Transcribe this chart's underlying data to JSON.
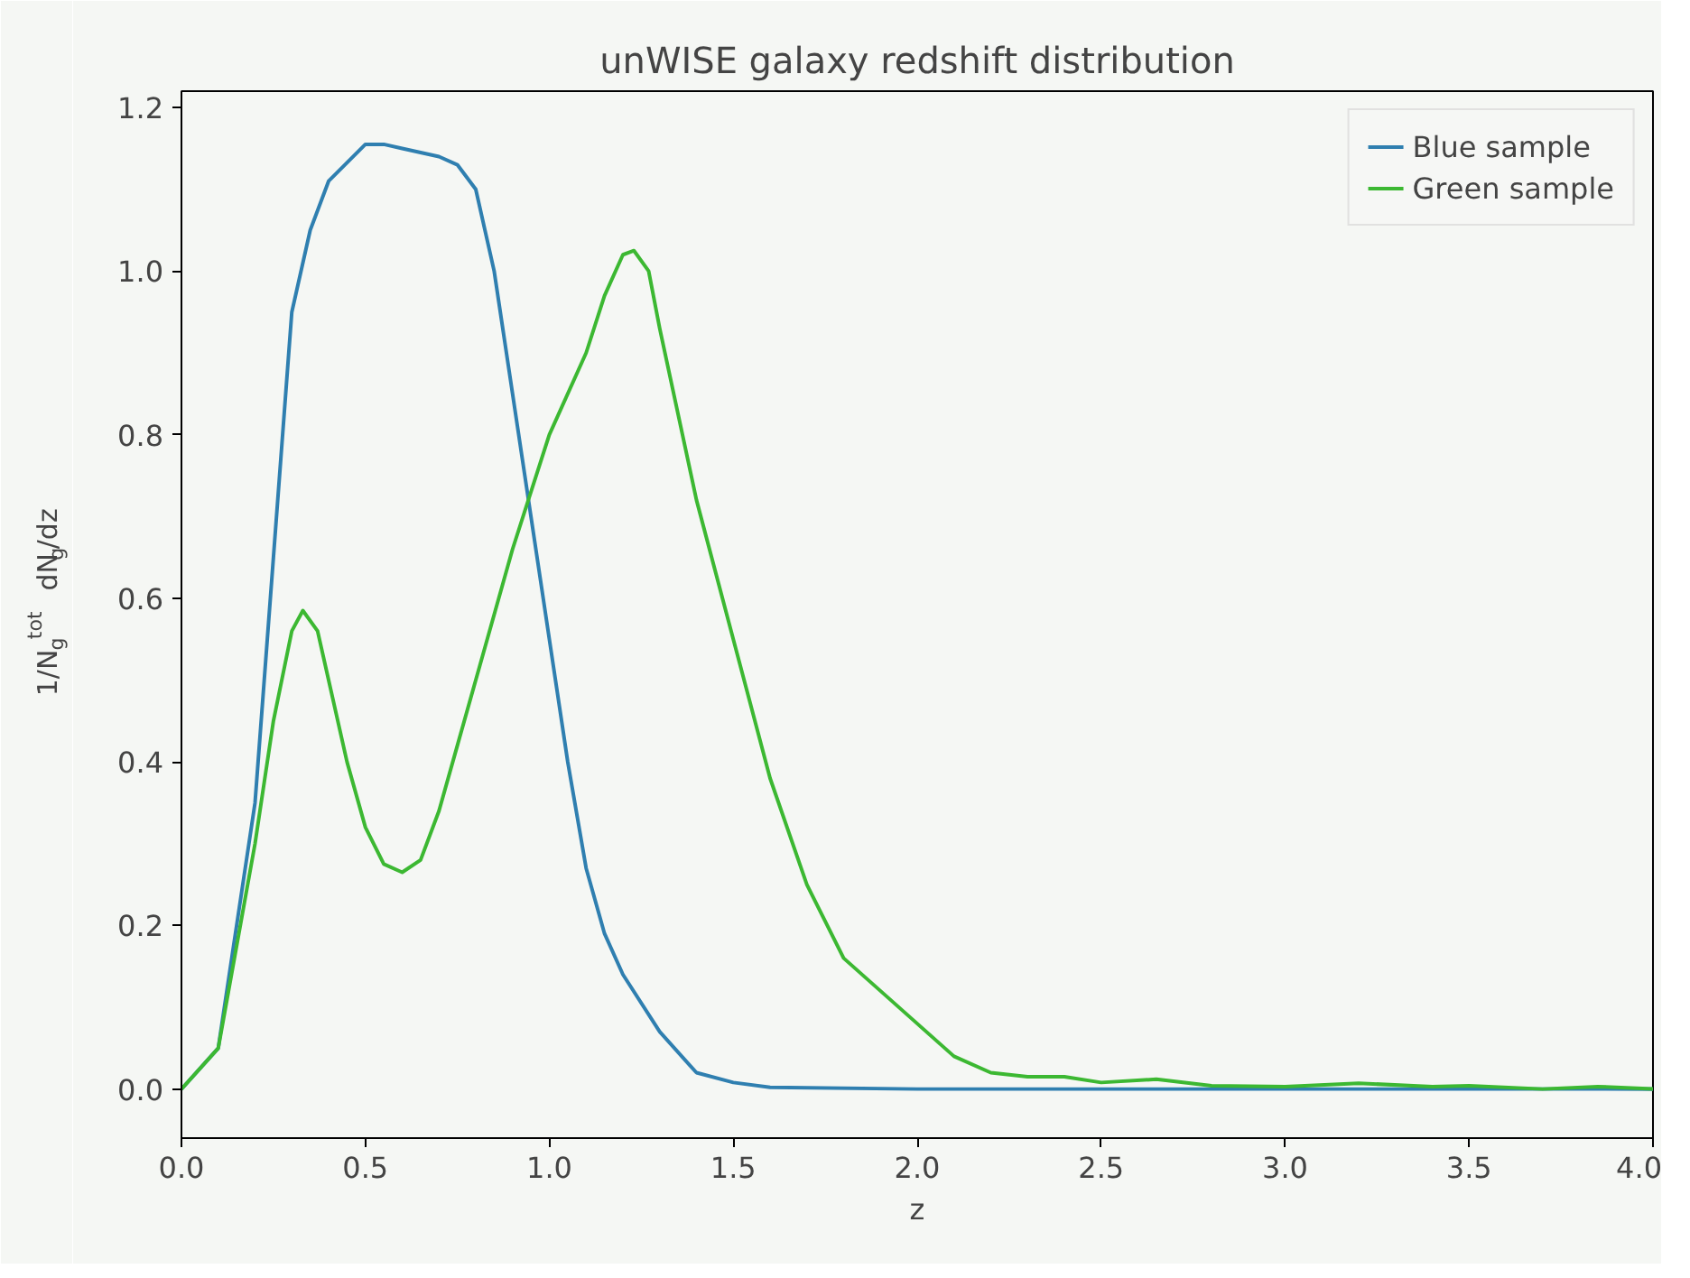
{
  "chart_data": {
    "type": "line",
    "title": "unWISE galaxy redshift distribution",
    "xlabel": "z",
    "ylabel": "1/N$_{g}$$^{tot}$ dN$_{g}$/dz",
    "xlim": [
      0,
      4
    ],
    "ylim": [
      -0.06,
      1.22
    ],
    "xticks": [
      {
        "value": 0,
        "label": "0.0"
      },
      {
        "value": 0.5,
        "label": "0.5"
      },
      {
        "value": 1,
        "label": "1.0"
      },
      {
        "value": 1.5,
        "label": "1.5"
      },
      {
        "value": 2,
        "label": "2.0"
      },
      {
        "value": 2.5,
        "label": "2.5"
      },
      {
        "value": 3,
        "label": "3.0"
      },
      {
        "value": 3.5,
        "label": "3.5"
      },
      {
        "value": 4,
        "label": "4.0"
      }
    ],
    "yticks": [
      {
        "value": 0,
        "label": "0.0"
      },
      {
        "value": 0.2,
        "label": "0.2"
      },
      {
        "value": 0.4,
        "label": "0.4"
      },
      {
        "value": 0.6,
        "label": "0.6"
      },
      {
        "value": 0.8,
        "label": "0.8"
      },
      {
        "value": 1,
        "label": "1.0"
      },
      {
        "value": 1.2,
        "label": "1.2"
      }
    ],
    "grid": false,
    "legend": "top right",
    "marker": "none",
    "line_style": "solid",
    "series": [
      {
        "name": "Blue sample",
        "color": "#2f7fb0",
        "x": [
          0,
          0.1,
          0.2,
          0.25,
          0.3,
          0.35,
          0.4,
          0.5,
          0.55,
          0.6,
          0.7,
          0.75,
          0.8,
          0.85,
          0.9,
          0.95,
          1.0,
          1.05,
          1.1,
          1.15,
          1.2,
          1.3,
          1.4,
          1.5,
          1.6,
          2.0,
          4.0
        ],
        "values": [
          0,
          0.05,
          0.35,
          0.65,
          0.95,
          1.05,
          1.11,
          1.155,
          1.155,
          1.15,
          1.14,
          1.13,
          1.1,
          1.0,
          0.85,
          0.7,
          0.55,
          0.4,
          0.27,
          0.19,
          0.14,
          0.07,
          0.02,
          0.008,
          0.002,
          0,
          0
        ]
      },
      {
        "name": "Green sample",
        "color": "#3cb832",
        "x": [
          0,
          0.1,
          0.2,
          0.25,
          0.3,
          0.33,
          0.37,
          0.4,
          0.45,
          0.5,
          0.55,
          0.6,
          0.65,
          0.7,
          0.8,
          0.9,
          1.0,
          1.1,
          1.15,
          1.2,
          1.23,
          1.27,
          1.3,
          1.4,
          1.5,
          1.6,
          1.7,
          1.8,
          1.9,
          2.0,
          2.1,
          2.2,
          2.3,
          2.4,
          2.5,
          2.65,
          2.8,
          3.0,
          3.2,
          3.4,
          3.5,
          3.7,
          3.85,
          4.0
        ],
        "values": [
          0,
          0.05,
          0.3,
          0.45,
          0.56,
          0.585,
          0.56,
          0.5,
          0.4,
          0.32,
          0.275,
          0.265,
          0.28,
          0.34,
          0.5,
          0.66,
          0.8,
          0.9,
          0.97,
          1.02,
          1.025,
          1.0,
          0.93,
          0.72,
          0.55,
          0.38,
          0.25,
          0.16,
          0.12,
          0.08,
          0.04,
          0.02,
          0.015,
          0.015,
          0.008,
          0.012,
          0.004,
          0.003,
          0.007,
          0.003,
          0.004,
          0.0,
          0.003,
          0
        ]
      }
    ]
  }
}
